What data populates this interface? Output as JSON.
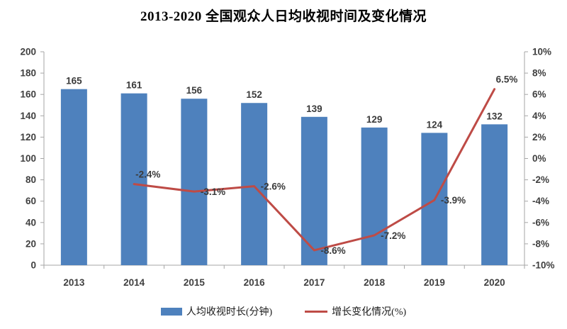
{
  "title": "2013-2020 全国观众人日均收视时间及变化情况",
  "chart_data": {
    "type": "bar",
    "subtype": "bar-line-combo",
    "categories": [
      "2013",
      "2014",
      "2015",
      "2016",
      "2017",
      "2018",
      "2019",
      "2020"
    ],
    "series": [
      {
        "name": "人均收视时长(分钟)",
        "type": "bar",
        "axis": "left",
        "color": "#4E81BD",
        "values": [
          165,
          161,
          156,
          152,
          139,
          129,
          124,
          132
        ],
        "labels": [
          "165",
          "161",
          "156",
          "152",
          "139",
          "129",
          "124",
          "132"
        ]
      },
      {
        "name": "增长变化情况(%)",
        "type": "line",
        "axis": "right",
        "color": "#BE4B46",
        "values": [
          null,
          -2.4,
          -3.1,
          -2.6,
          -8.6,
          -7.2,
          -3.9,
          6.5
        ],
        "labels": [
          null,
          "-2.4%",
          "-3.1%",
          "-2.6%",
          "-8.6%",
          "-7.2%",
          "-3.9%",
          "6.5%"
        ],
        "label_positions": [
          null,
          "above",
          "right",
          "right",
          "right",
          "right",
          "right",
          "above"
        ]
      }
    ],
    "left_axis": {
      "min": 0,
      "max": 200,
      "step": 20,
      "ticks": [
        "0",
        "20",
        "40",
        "60",
        "80",
        "100",
        "120",
        "140",
        "160",
        "180",
        "200"
      ]
    },
    "right_axis": {
      "min": -10,
      "max": 10,
      "step": 2,
      "ticks": [
        "-10%",
        "-8%",
        "-6%",
        "-4%",
        "-2%",
        "0%",
        "2%",
        "4%",
        "6%",
        "8%",
        "10%"
      ]
    },
    "grid": false,
    "legend_position": "bottom"
  },
  "colors": {
    "axis_line": "#A6A6A6",
    "tick_text": "#404040",
    "data_label_text": "#3B3B3B",
    "background": "#FFFFFF"
  }
}
